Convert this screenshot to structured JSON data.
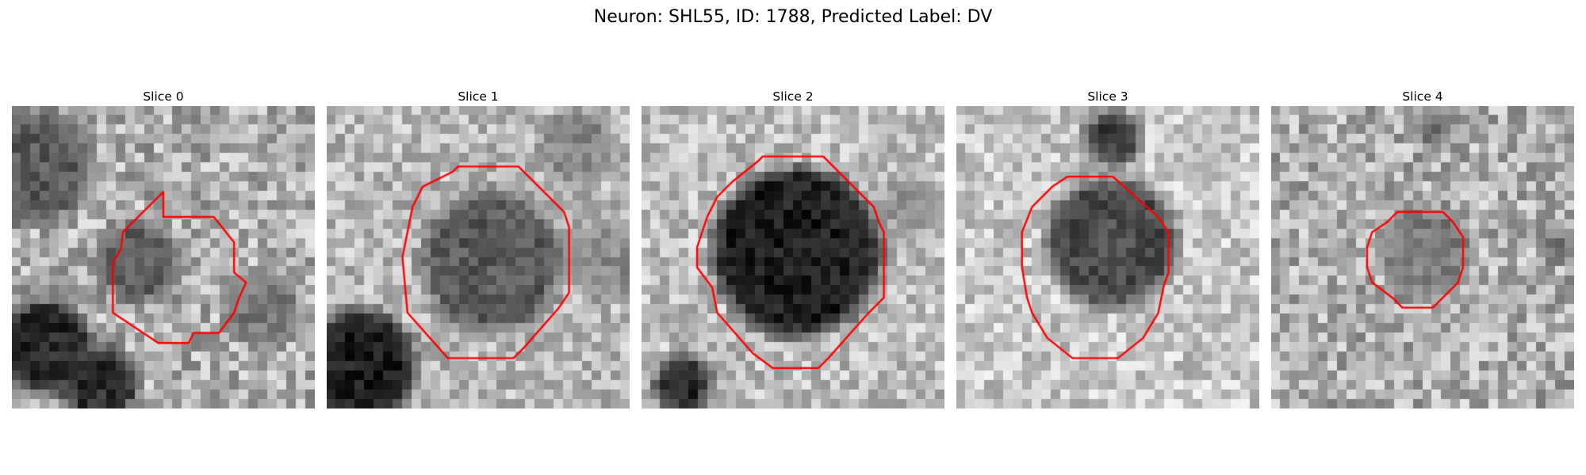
{
  "figure": {
    "title": "Neuron: SHL55, ID: 1788, Predicted Label: DV"
  },
  "panels": [
    {
      "title": "Slice 0",
      "contour_color": "#ff0000",
      "colormap": "gray"
    },
    {
      "title": "Slice 1",
      "contour_color": "#ff0000",
      "colormap": "gray"
    },
    {
      "title": "Slice 2",
      "contour_color": "#ff0000",
      "colormap": "gray"
    },
    {
      "title": "Slice 3",
      "contour_color": "#ff0000",
      "colormap": "gray"
    },
    {
      "title": "Slice 4",
      "contour_color": "#ff0000",
      "colormap": "gray"
    }
  ]
}
